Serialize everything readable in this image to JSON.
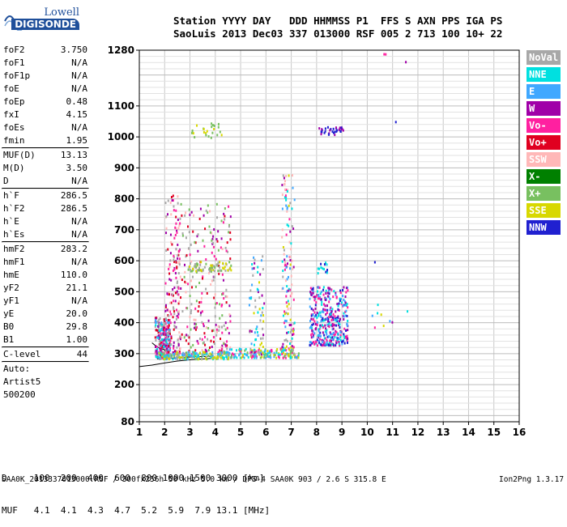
{
  "logo": {
    "line1": "Lowell",
    "line2": "DIGISONDE"
  },
  "header": {
    "line1": "Station YYYY DAY   DDD HHMMSS P1  FFS S AXN PPS IGA PS",
    "line2": "SaoLuis 2013 Dec03 337 013000 RSF 005 2 713 100 10+ 22"
  },
  "params": {
    "block1": [
      {
        "name": "foF2",
        "value": "3.750"
      },
      {
        "name": "foF1",
        "value": "N/A"
      },
      {
        "name": "foF1p",
        "value": "N/A"
      },
      {
        "name": "foE",
        "value": "N/A"
      },
      {
        "name": "foEp",
        "value": "0.48"
      },
      {
        "name": "fxI",
        "value": "4.15"
      },
      {
        "name": "foEs",
        "value": "N/A"
      },
      {
        "name": "fmin",
        "value": "1.95"
      }
    ],
    "block2": [
      {
        "name": "MUF(D)",
        "value": "13.13"
      },
      {
        "name": "M(D)",
        "value": "3.50"
      },
      {
        "name": "D",
        "value": "N/A"
      }
    ],
    "block3": [
      {
        "name": "h`F",
        "value": "286.5"
      },
      {
        "name": "h`F2",
        "value": "286.5"
      },
      {
        "name": "h`E",
        "value": "N/A"
      },
      {
        "name": "h`Es",
        "value": "N/A"
      }
    ],
    "block4": [
      {
        "name": "hmF2",
        "value": "283.2"
      },
      {
        "name": "hmF1",
        "value": "N/A"
      },
      {
        "name": "hmE",
        "value": "110.0"
      },
      {
        "name": "yF2",
        "value": "21.1"
      },
      {
        "name": "yF1",
        "value": "N/A"
      },
      {
        "name": "yE",
        "value": "20.0"
      },
      {
        "name": "B0",
        "value": "29.8"
      },
      {
        "name": "B1",
        "value": "1.00"
      }
    ],
    "clevel": {
      "name": "C-level",
      "value": "44"
    },
    "auto": [
      "Auto:",
      "Artist5",
      "500200"
    ]
  },
  "legend": [
    {
      "label": "NoVal",
      "color": "#a8a8a8"
    },
    {
      "label": "NNE",
      "color": "#00e0e0"
    },
    {
      "label": "E",
      "color": "#40a8ff"
    },
    {
      "label": "W",
      "color": "#a000a8"
    },
    {
      "label": "Vo-",
      "color": "#ff20a0"
    },
    {
      "label": "Vo+",
      "color": "#e00020"
    },
    {
      "label": "SSW",
      "color": "#ffb8b8"
    },
    {
      "label": "X-",
      "color": "#008000"
    },
    {
      "label": "X+",
      "color": "#78c060"
    },
    {
      "label": "SSE",
      "color": "#d8d800"
    },
    {
      "label": "NNW",
      "color": "#2020d0"
    }
  ],
  "muf_table": {
    "row1": "D     100  200  400  600  800 1000 1500 3000 [km]",
    "row2": "MUF   4.1  4.1  4.3  4.7  5.2  5.9  7.9 13.1 [MHz]"
  },
  "footer": {
    "left": "SAA0K_2013337013000.RSF / 300fx256h 50 kHz 5.0 km / DPS-4 SAA0K 903 / 2.6 S 315.8 E",
    "right": "Ion2Png 1.3.17"
  },
  "chart_data": {
    "type": "scatter",
    "title": "",
    "xlabel": "",
    "ylabel": "",
    "xlim": [
      1,
      16
    ],
    "ylim": [
      80,
      1280
    ],
    "x_ticks": [
      1,
      2,
      3,
      4,
      5,
      6,
      7,
      8,
      9,
      10,
      11,
      12,
      13,
      14,
      15,
      16
    ],
    "y_ticks": [
      80,
      200,
      300,
      400,
      500,
      600,
      700,
      800,
      900,
      1000,
      1100,
      1280
    ],
    "grid": true,
    "clusters": [
      {
        "x": [
          1.6,
          2.2
        ],
        "y": [
          290,
          420
        ],
        "count": 260,
        "colors": [
          "Vo-",
          "Vo+",
          "W",
          "NNE",
          "E",
          "NoVal"
        ]
      },
      {
        "x": [
          2.0,
          2.6
        ],
        "y": [
          300,
          820
        ],
        "count": 180,
        "colors": [
          "Vo-",
          "Vo+",
          "W",
          "SSW",
          "NoVal"
        ]
      },
      {
        "x": [
          2.6,
          4.6
        ],
        "y": [
          300,
          800
        ],
        "count": 260,
        "colors": [
          "Vo-",
          "Vo+",
          "W",
          "SSW",
          "NoVal",
          "X+"
        ]
      },
      {
        "x": [
          2.9,
          4.6
        ],
        "y": [
          570,
          600
        ],
        "count": 70,
        "colors": [
          "SSE",
          "X+",
          "NoVal"
        ]
      },
      {
        "x": [
          3.0,
          4.3
        ],
        "y": [
          1000,
          1050
        ],
        "count": 24,
        "colors": [
          "SSE",
          "X+"
        ]
      },
      {
        "x": [
          1.7,
          4.5
        ],
        "y": [
          286,
          310
        ],
        "count": 200,
        "colors": [
          "NNE",
          "E",
          "X+",
          "NoVal",
          "SSE"
        ]
      },
      {
        "x": [
          4.4,
          7.3
        ],
        "y": [
          290,
          320
        ],
        "count": 160,
        "colors": [
          "NNE",
          "E",
          "SSE",
          "X+",
          "Vo-"
        ]
      },
      {
        "x": [
          5.3,
          5.9
        ],
        "y": [
          300,
          620
        ],
        "count": 70,
        "colors": [
          "NNE",
          "E",
          "W",
          "SSE",
          "NoVal"
        ]
      },
      {
        "x": [
          6.6,
          7.1
        ],
        "y": [
          300,
          880
        ],
        "count": 140,
        "colors": [
          "NNE",
          "E",
          "Vo-",
          "W",
          "SSW",
          "SSE",
          "NoVal"
        ]
      },
      {
        "x": [
          7.7,
          9.2
        ],
        "y": [
          330,
          520
        ],
        "count": 380,
        "colors": [
          "NNW",
          "NNE",
          "E",
          "W",
          "Vo-"
        ]
      },
      {
        "x": [
          8.0,
          8.4
        ],
        "y": [
          560,
          600
        ],
        "count": 14,
        "colors": [
          "NNW",
          "NNE"
        ]
      },
      {
        "x": [
          8.0,
          9.1
        ],
        "y": [
          1010,
          1035
        ],
        "count": 34,
        "colors": [
          "NNW",
          "W"
        ]
      },
      {
        "x": [
          10.0,
          11.6
        ],
        "y": [
          380,
          470
        ],
        "count": 9,
        "colors": [
          "Vo-",
          "E",
          "W",
          "NNE",
          "SSE"
        ]
      },
      {
        "x": [
          10.2,
          10.3
        ],
        "y": [
          595,
          600
        ],
        "count": 1,
        "colors": [
          "NNW"
        ]
      },
      {
        "x": [
          10.6,
          10.7
        ],
        "y": [
          1270,
          1280
        ],
        "count": 2,
        "colors": [
          "Vo-",
          "SSE"
        ]
      },
      {
        "x": [
          11.0,
          11.1
        ],
        "y": [
          1050,
          1055
        ],
        "count": 1,
        "colors": [
          "NNW"
        ]
      },
      {
        "x": [
          11.4,
          11.5
        ],
        "y": [
          1240,
          1250
        ],
        "count": 1,
        "colors": [
          "W"
        ]
      }
    ]
  }
}
